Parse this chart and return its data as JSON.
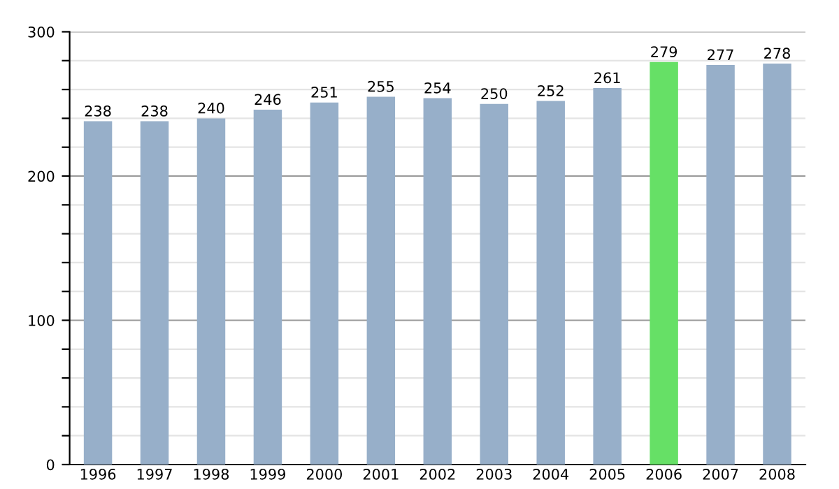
{
  "chart_data": {
    "type": "bar",
    "categories": [
      "1996",
      "1997",
      "1998",
      "1999",
      "2000",
      "2001",
      "2002",
      "2003",
      "2004",
      "2005",
      "2006",
      "2007",
      "2008"
    ],
    "values": [
      238,
      238,
      240,
      246,
      251,
      255,
      254,
      250,
      252,
      261,
      279,
      277,
      278
    ],
    "colors": [
      "#97afc9",
      "#97afc9",
      "#97afc9",
      "#97afc9",
      "#97afc9",
      "#97afc9",
      "#97afc9",
      "#97afc9",
      "#97afc9",
      "#97afc9",
      "#66e066",
      "#97afc9",
      "#97afc9"
    ],
    "ylim": [
      0,
      300
    ],
    "yticks": [
      0,
      {
        "value": 20,
        "label": null
      },
      {
        "value": 40,
        "label": null
      },
      {
        "value": 60,
        "label": null
      },
      {
        "value": 80,
        "label": null
      },
      100,
      {
        "value": 120,
        "label": null
      },
      {
        "value": 140,
        "label": null
      },
      {
        "value": 160,
        "label": null
      },
      {
        "value": 180,
        "label": null
      },
      200,
      {
        "value": 220,
        "label": null
      },
      {
        "value": 240,
        "label": null
      },
      {
        "value": 260,
        "label": null
      },
      {
        "value": 280,
        "label": null
      },
      300
    ],
    "grid": "y",
    "data_labels": true
  }
}
